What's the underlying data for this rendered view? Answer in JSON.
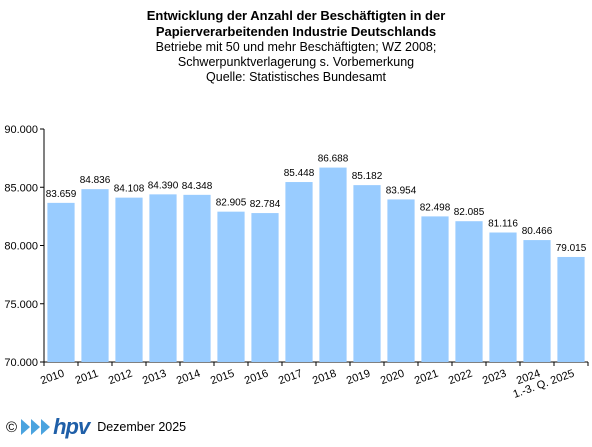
{
  "chart_data": {
    "type": "bar",
    "title_lines": [
      "Entwicklung der Anzahl der Beschäftigten in der",
      "Papierverarbeitenden Industrie Deutschlands"
    ],
    "subtitle_lines": [
      "Betriebe mit 50 und mehr Beschäftigten; WZ 2008;",
      "Schwerpunktverlagerung s. Vorbemerkung",
      "Quelle: Statistisches Bundesamt"
    ],
    "categories": [
      "2010",
      "2011",
      "2012",
      "2013",
      "2014",
      "2015",
      "2016",
      "2017",
      "2018",
      "2019",
      "2020",
      "2021",
      "2022",
      "2023",
      "2024",
      "1.-3. Q. 2025"
    ],
    "values": [
      83659,
      84836,
      84108,
      84390,
      84348,
      82905,
      82784,
      85448,
      86688,
      85182,
      83954,
      82498,
      82085,
      81116,
      80466,
      79015
    ],
    "value_labels": [
      "83.659",
      "84.836",
      "84.108",
      "84.390",
      "84.348",
      "82.905",
      "82.784",
      "85.448",
      "86.688",
      "85.182",
      "83.954",
      "82.498",
      "82.085",
      "81.116",
      "80.466",
      "79.015"
    ],
    "ylim": [
      70000,
      90000
    ],
    "yticks": [
      70000,
      75000,
      80000,
      85000,
      90000
    ],
    "ytick_labels": [
      "70.000",
      "75.000",
      "80.000",
      "85.000",
      "90.000"
    ],
    "xlabel": "",
    "ylabel": "",
    "grid": false,
    "legend": "none",
    "bar_color": "#99ccff"
  },
  "footer": {
    "copyright": "©",
    "logo_text": "hpv",
    "date": "Dezember 2025"
  }
}
